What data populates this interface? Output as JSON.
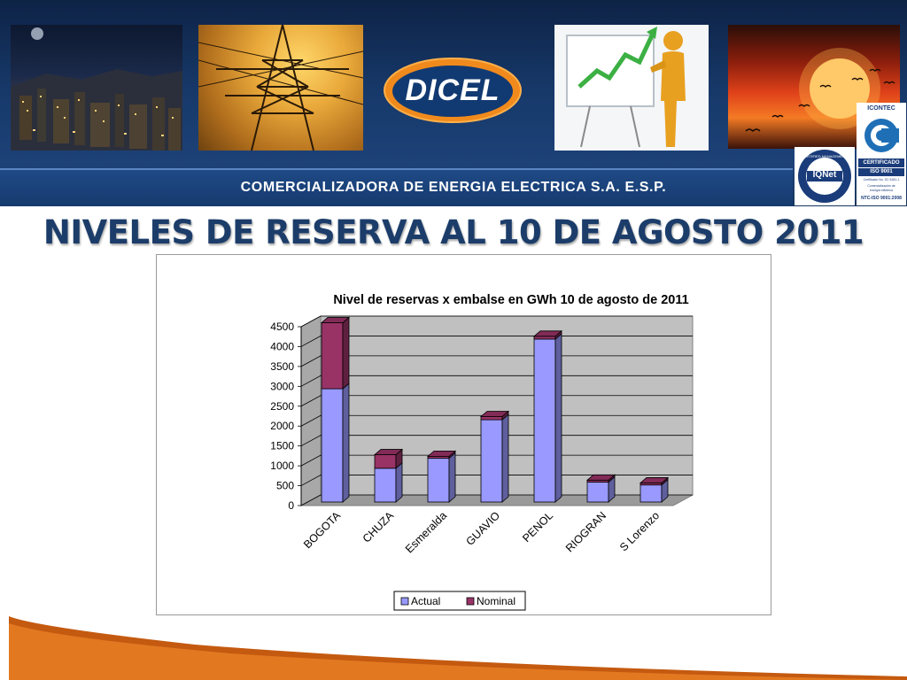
{
  "header": {
    "logo_text": "DICEL",
    "company_name": "COMERCIALIZADORA DE ENERGIA ELECTRICA S.A. E.S.P.",
    "certifications": {
      "iqnet": {
        "ring_text": "CERTIFIED MANAGEMENT SYSTEM",
        "center": "IQNet"
      },
      "icontec": {
        "brand": "ICONTEC",
        "badge": "CERTIFICADO",
        "standard": "ISO 9001",
        "cert_no": "Certificado No. SC 6181-1",
        "scope_line1": "Comercialización de",
        "scope_line2": "energía eléctrica",
        "ntc": "NTC-ISO 9001:2008"
      }
    }
  },
  "slide": {
    "title": "NIVELES DE RESERVA AL 10 DE AGOSTO 2011"
  },
  "chart_data": {
    "type": "bar",
    "stacked": true,
    "three_d": true,
    "title": "Nivel de reservas x embalse en GWh 10 de agosto de 2011",
    "categories": [
      "BOGOTA",
      "CHUZA",
      "Esmeralda",
      "GUAVIO",
      "PENOL",
      "RIOGRAN",
      "S Lorenzo"
    ],
    "series": [
      {
        "name": "Actual",
        "values": [
          2850,
          850,
          1100,
          2070,
          4100,
          500,
          430
        ],
        "color": "#9999ff"
      },
      {
        "name": "Nominal",
        "values": [
          1660,
          340,
          50,
          80,
          70,
          50,
          50
        ],
        "color": "#993366"
      }
    ],
    "ylim": [
      0,
      4500
    ],
    "yticks": [
      0,
      500,
      1000,
      1500,
      2000,
      2500,
      3000,
      3500,
      4000,
      4500
    ],
    "grid": true,
    "legend": "bottom",
    "xlabel": "",
    "ylabel": ""
  }
}
